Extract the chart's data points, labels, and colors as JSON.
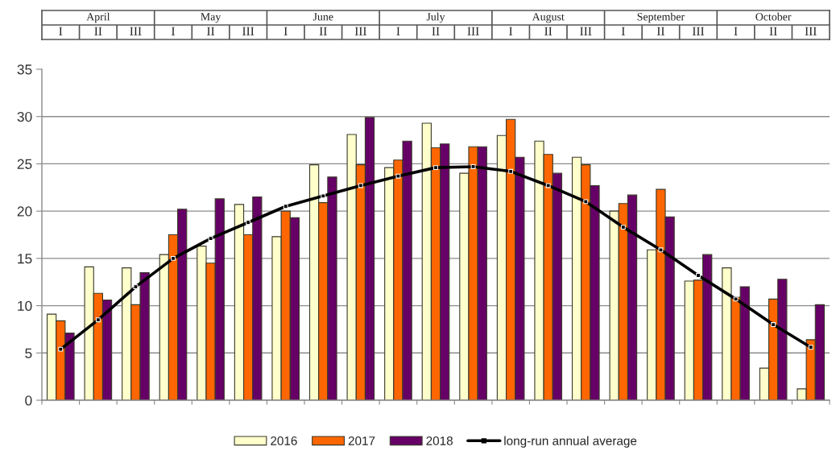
{
  "chart_data": {
    "type": "bar",
    "categories": [
      "I",
      "II",
      "III",
      "I",
      "II",
      "III",
      "I",
      "II",
      "III",
      "I",
      "II",
      "III",
      "I",
      "II",
      "III",
      "I",
      "II",
      "III",
      "I",
      "II",
      "III"
    ],
    "annotations": [
      "April",
      "May",
      "June",
      "July",
      "August",
      "September",
      "October"
    ],
    "series": [
      {
        "name": "2016",
        "color": "#ffffcc",
        "values": [
          9.1,
          14.1,
          14.0,
          15.4,
          16.3,
          20.7,
          17.3,
          24.9,
          28.1,
          24.6,
          29.3,
          24.0,
          28.0,
          27.4,
          25.7,
          20.0,
          15.9,
          12.6,
          14.0,
          3.4,
          1.2
        ]
      },
      {
        "name": "2017",
        "color": "#ff6600",
        "values": [
          8.4,
          11.3,
          10.1,
          17.5,
          14.5,
          17.5,
          20.0,
          20.9,
          24.9,
          25.4,
          26.7,
          26.8,
          29.7,
          26.0,
          24.9,
          20.8,
          22.3,
          12.7,
          10.9,
          10.7,
          6.4
        ]
      },
      {
        "name": "2018",
        "color": "#660066",
        "values": [
          7.1,
          10.6,
          13.5,
          20.2,
          21.3,
          21.5,
          19.3,
          23.6,
          29.9,
          27.4,
          27.1,
          26.8,
          25.7,
          24.0,
          22.7,
          21.7,
          19.4,
          15.4,
          12.0,
          12.8,
          10.1
        ]
      },
      {
        "name": "long-run annual average",
        "type": "line",
        "color": "#000000",
        "marker": "square",
        "line_style": "solid",
        "values": [
          5.4,
          8.5,
          12.0,
          15.0,
          17.1,
          18.8,
          20.5,
          21.6,
          22.7,
          23.7,
          24.6,
          24.7,
          24.2,
          22.7,
          21.0,
          18.3,
          15.9,
          13.2,
          10.7,
          8.0,
          5.6
        ]
      }
    ],
    "ylim": [
      0,
      35
    ],
    "yticks": [
      0,
      5,
      10,
      15,
      20,
      25,
      30,
      35
    ],
    "grid": "y",
    "legend": "bottom"
  }
}
